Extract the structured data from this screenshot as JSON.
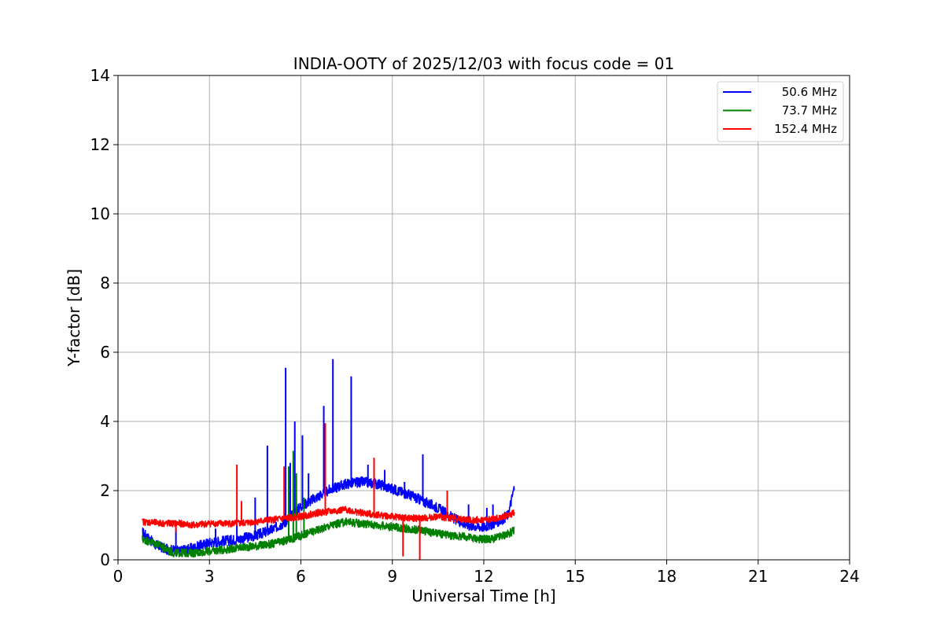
{
  "chart_data": {
    "type": "line",
    "title": "INDIA-OOTY of 2025/12/03 with focus code = 01",
    "xlabel": "Universal Time [h]",
    "ylabel": "Y-factor [dB]",
    "xlim": [
      0,
      24
    ],
    "ylim": [
      0,
      14
    ],
    "grid": true,
    "legend_position": "top-right",
    "x_ticks": [
      0,
      3,
      6,
      9,
      12,
      15,
      18,
      21,
      24
    ],
    "x_tick_labels": [
      "0",
      "3",
      "6",
      "9",
      "12",
      "15",
      "18",
      "21",
      "24"
    ],
    "y_ticks": [
      0,
      2,
      4,
      6,
      8,
      10,
      12,
      14
    ],
    "y_tick_labels": [
      "0",
      "2",
      "4",
      "6",
      "8",
      "10",
      "12",
      "14"
    ],
    "series": [
      {
        "name": "50.6 MHz",
        "color": "#0000ff",
        "x": [
          0.8,
          1.2,
          1.6,
          2.0,
          2.5,
          3.0,
          3.5,
          4.0,
          4.5,
          5.0,
          5.5,
          6.0,
          6.5,
          7.0,
          7.5,
          8.0,
          8.5,
          9.0,
          9.5,
          10.0,
          10.5,
          11.0,
          11.5,
          12.0,
          12.5,
          12.8,
          13.0
        ],
        "values": [
          0.8,
          0.45,
          0.3,
          0.25,
          0.35,
          0.5,
          0.55,
          0.6,
          0.7,
          0.85,
          1.1,
          1.55,
          1.8,
          2.05,
          2.2,
          2.25,
          2.2,
          2.05,
          1.9,
          1.7,
          1.5,
          1.2,
          1.0,
          0.95,
          1.1,
          1.3,
          2.1
        ],
        "noise": 0.15,
        "spikes": [
          {
            "x": 1.9,
            "y": 0.9
          },
          {
            "x": 3.2,
            "y": 0.9
          },
          {
            "x": 3.9,
            "y": 1.1
          },
          {
            "x": 4.5,
            "y": 1.8
          },
          {
            "x": 4.9,
            "y": 3.3
          },
          {
            "x": 5.5,
            "y": 5.55
          },
          {
            "x": 5.65,
            "y": 2.8
          },
          {
            "x": 5.8,
            "y": 4.0
          },
          {
            "x": 6.05,
            "y": 3.6
          },
          {
            "x": 6.25,
            "y": 2.5
          },
          {
            "x": 6.75,
            "y": 4.45
          },
          {
            "x": 7.05,
            "y": 5.8
          },
          {
            "x": 7.65,
            "y": 5.3
          },
          {
            "x": 8.2,
            "y": 2.75
          },
          {
            "x": 8.75,
            "y": 2.6
          },
          {
            "x": 9.4,
            "y": 2.25
          },
          {
            "x": 10.0,
            "y": 3.05
          },
          {
            "x": 11.5,
            "y": 1.6
          },
          {
            "x": 12.1,
            "y": 1.5
          },
          {
            "x": 12.3,
            "y": 1.6
          }
        ]
      },
      {
        "name": "73.7 MHz",
        "color": "#008000",
        "x": [
          0.8,
          1.3,
          1.8,
          2.5,
          3.0,
          3.5,
          4.0,
          4.5,
          5.0,
          5.5,
          6.0,
          6.5,
          7.0,
          7.5,
          8.0,
          8.5,
          9.0,
          9.5,
          10.0,
          10.5,
          11.0,
          11.5,
          11.9,
          12.3,
          12.8,
          13.0
        ],
        "values": [
          0.6,
          0.45,
          0.2,
          0.2,
          0.25,
          0.3,
          0.35,
          0.4,
          0.45,
          0.55,
          0.7,
          0.85,
          1.0,
          1.1,
          1.05,
          1.0,
          0.95,
          0.9,
          0.85,
          0.75,
          0.7,
          0.65,
          0.6,
          0.6,
          0.75,
          0.85
        ],
        "noise": 0.12,
        "spikes": [
          {
            "x": 5.6,
            "y": 2.7
          },
          {
            "x": 5.75,
            "y": 3.15
          },
          {
            "x": 5.85,
            "y": 2.5
          },
          {
            "x": 6.1,
            "y": 1.8
          }
        ]
      },
      {
        "name": "152.4 MHz",
        "color": "#ff0000",
        "x": [
          0.8,
          1.5,
          2.0,
          2.5,
          3.0,
          3.5,
          4.0,
          4.5,
          5.0,
          5.5,
          6.0,
          6.5,
          7.0,
          7.5,
          8.0,
          8.5,
          9.0,
          9.5,
          10.0,
          10.5,
          11.0,
          11.5,
          12.0,
          12.5,
          13.0
        ],
        "values": [
          1.1,
          1.05,
          1.05,
          1.0,
          1.05,
          1.05,
          1.05,
          1.1,
          1.15,
          1.2,
          1.25,
          1.35,
          1.4,
          1.45,
          1.35,
          1.3,
          1.25,
          1.2,
          1.2,
          1.25,
          1.2,
          1.15,
          1.15,
          1.2,
          1.35
        ],
        "noise": 0.1,
        "spikes": [
          {
            "x": 3.9,
            "y": 2.75
          },
          {
            "x": 4.05,
            "y": 1.7
          },
          {
            "x": 5.45,
            "y": 2.7
          },
          {
            "x": 6.8,
            "y": 3.95
          },
          {
            "x": 8.4,
            "y": 2.95
          },
          {
            "x": 10.8,
            "y": 2.0
          },
          {
            "x": 9.35,
            "y": 0.1
          },
          {
            "x": 9.9,
            "y": 0.0
          },
          {
            "x": 1.9,
            "y": 0.8
          }
        ]
      }
    ]
  }
}
